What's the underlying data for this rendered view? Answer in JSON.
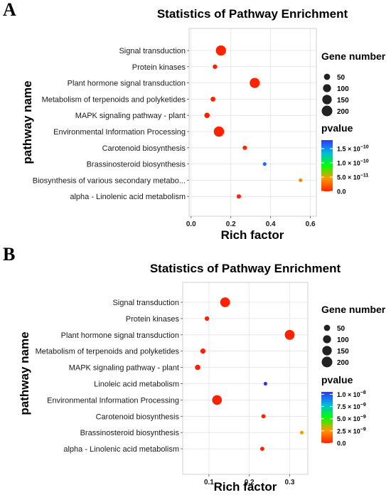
{
  "chart_data": [
    {
      "panel": "A",
      "type": "scatter",
      "title": "Statistics of Pathway Enrichment",
      "xlabel": "Rich factor",
      "ylabel": "pathway name",
      "xlim": [
        -0.01,
        0.63
      ],
      "xticks": [
        0.0,
        0.2,
        0.4,
        0.6
      ],
      "xtick_labels": [
        "0.0",
        "0.2",
        "0.4",
        "0.6"
      ],
      "grid": true,
      "categories": [
        "Signal transduction",
        "Protein kinases",
        "Plant hormone signal transduction",
        "Metabolism of terpenoids and polyketides",
        "MAPK signaling pathway - plant",
        "Environmental Information Processing",
        "Carotenoid biosynthesis",
        "Brassinosteroid biosynthesis",
        "Biosynthesis of various secondary metabo...",
        "alpha - Linolenic acid metabolism"
      ],
      "points": [
        {
          "pathway": "Signal transduction",
          "x": 0.15,
          "gene_number": 180,
          "pvalue": 0.0
        },
        {
          "pathway": "Protein kinases",
          "x": 0.12,
          "gene_number": 20,
          "pvalue": 0.0
        },
        {
          "pathway": "Plant hormone signal transduction",
          "x": 0.32,
          "gene_number": 175,
          "pvalue": 0.0
        },
        {
          "pathway": "Metabolism of terpenoids and polyketides",
          "x": 0.11,
          "gene_number": 25,
          "pvalue": 0.0
        },
        {
          "pathway": "MAPK signaling pathway - plant",
          "x": 0.08,
          "gene_number": 35,
          "pvalue": 0.0
        },
        {
          "pathway": "Environmental Information Processing",
          "x": 0.14,
          "gene_number": 185,
          "pvalue": 0.0
        },
        {
          "pathway": "Carotenoid biosynthesis",
          "x": 0.27,
          "gene_number": 18,
          "pvalue": 2e-12
        },
        {
          "pathway": "Brassinosteroid biosynthesis",
          "x": 0.37,
          "gene_number": 10,
          "pvalue": 1.6e-10
        },
        {
          "pathway": "Biosynthesis of various secondary metabo...",
          "x": 0.55,
          "gene_number": 8,
          "pvalue": 3.5e-11
        },
        {
          "pathway": "alpha - Linolenic acid metabolism",
          "x": 0.24,
          "gene_number": 18,
          "pvalue": 1e-12
        }
      ],
      "size_legend": {
        "title": "Gene  number",
        "values": [
          50,
          100,
          150,
          200
        ],
        "labels": [
          "50",
          "100",
          "150",
          "200"
        ]
      },
      "color_legend": {
        "title": "pvalue",
        "max": 1.8e-10,
        "ticks": [
          1.5e-10,
          1e-10,
          5e-11,
          0
        ],
        "tick_labels": [
          {
            "mantissa": "1.5 × 10",
            "exp": "−10"
          },
          {
            "mantissa": "1.0 × 10",
            "exp": "−10"
          },
          {
            "mantissa": "5.0 × 10",
            "exp": "−11"
          },
          {
            "mantissa": "0.0",
            "exp": ""
          }
        ],
        "colors": [
          "#ff2200",
          "#ff9900",
          "#00ff00",
          "#00bbdd",
          "#3333ff"
        ]
      }
    },
    {
      "panel": "B",
      "type": "scatter",
      "title": "Statistics of Pathway Enrichment",
      "xlabel": "Rich factor",
      "ylabel": "pathway name",
      "xlim": [
        0.035,
        0.345
      ],
      "xticks": [
        0.1,
        0.2,
        0.3
      ],
      "xtick_labels": [
        "0.1",
        "0.2",
        "0.3"
      ],
      "grid": true,
      "categories": [
        "Signal transduction",
        "Protein kinases",
        "Plant hormone signal transduction",
        "Metabolism of terpenoids and polyketides",
        "MAPK signaling pathway - plant",
        "Linoleic acid metabolism",
        "Environmental Information Processing",
        "Carotenoid biosynthesis",
        "Brassinosteroid biosynthesis",
        "alpha - Linolenic acid metabolism"
      ],
      "points": [
        {
          "pathway": "Signal transduction",
          "x": 0.14,
          "gene_number": 160,
          "pvalue": 0.0
        },
        {
          "pathway": "Protein kinases",
          "x": 0.095,
          "gene_number": 20,
          "pvalue": 0.0
        },
        {
          "pathway": "Plant hormone signal transduction",
          "x": 0.3,
          "gene_number": 165,
          "pvalue": 0.0
        },
        {
          "pathway": "Metabolism of terpenoids and polyketides",
          "x": 0.085,
          "gene_number": 30,
          "pvalue": 0.0
        },
        {
          "pathway": "MAPK signaling pathway - plant",
          "x": 0.072,
          "gene_number": 35,
          "pvalue": 0.0
        },
        {
          "pathway": "Linoleic acid metabolism",
          "x": 0.24,
          "gene_number": 10,
          "pvalue": 1.05e-08
        },
        {
          "pathway": "Environmental Information Processing",
          "x": 0.12,
          "gene_number": 160,
          "pvalue": 0.0
        },
        {
          "pathway": "Carotenoid biosynthesis",
          "x": 0.235,
          "gene_number": 15,
          "pvalue": 0.0
        },
        {
          "pathway": "Brassinosteroid biosynthesis",
          "x": 0.33,
          "gene_number": 10,
          "pvalue": 2.8e-09
        },
        {
          "pathway": "alpha - Linolenic acid metabolism",
          "x": 0.232,
          "gene_number": 15,
          "pvalue": 0.0
        }
      ],
      "size_legend": {
        "title": "Gene  number",
        "values": [
          50,
          100,
          150,
          200
        ],
        "labels": [
          "50",
          "100",
          "150",
          "200"
        ]
      },
      "color_legend": {
        "title": "pvalue",
        "max": 1.05e-08,
        "ticks": [
          1e-08,
          7.5e-09,
          5e-09,
          2.5e-09,
          0
        ],
        "tick_labels": [
          {
            "mantissa": "1.0 × 10",
            "exp": "−8"
          },
          {
            "mantissa": "7.5 × 10",
            "exp": "−9"
          },
          {
            "mantissa": "5.0 × 10",
            "exp": "−9"
          },
          {
            "mantissa": "2.5 × 10",
            "exp": "−9"
          },
          {
            "mantissa": "0.0",
            "exp": ""
          }
        ],
        "colors": [
          "#ff2200",
          "#ff9900",
          "#00ff00",
          "#00bbdd",
          "#3333ff"
        ]
      }
    }
  ]
}
